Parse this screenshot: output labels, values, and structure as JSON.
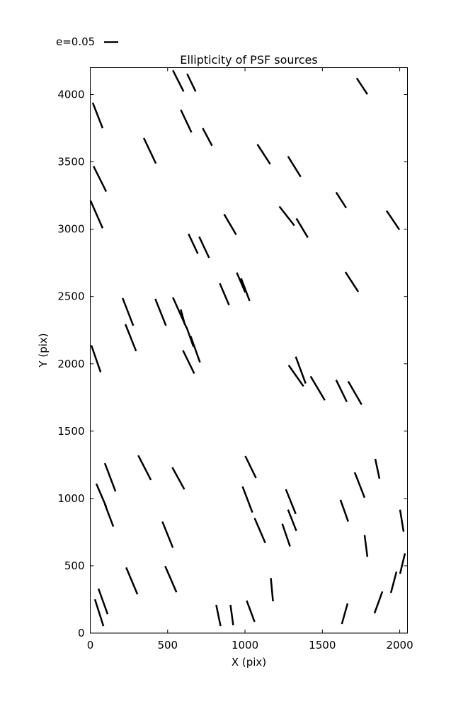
{
  "legend": {
    "label": "e=0.05",
    "ellipticity_value": 0.05
  },
  "chart_data": {
    "type": "quiver",
    "title": "Ellipticity of PSF sources",
    "xlabel": "X (pix)",
    "ylabel": "Y (pix)",
    "xlim": [
      0,
      2050
    ],
    "ylim": [
      0,
      4200
    ],
    "xticks": [
      0,
      500,
      1000,
      1500,
      2000
    ],
    "yticks": [
      0,
      500,
      1000,
      1500,
      2000,
      2500,
      3000,
      3500,
      4000
    ],
    "grid": false,
    "legend_position": "upper left outside",
    "stick_color": "#000000",
    "axis_color": "#000000",
    "segments": [
      [
        534,
        4180,
        603,
        4023
      ],
      [
        626,
        4154,
        681,
        4023
      ],
      [
        1722,
        4122,
        1791,
        4002
      ],
      [
        16,
        3939,
        80,
        3750
      ],
      [
        585,
        3887,
        654,
        3719
      ],
      [
        727,
        3750,
        787,
        3620
      ],
      [
        346,
        3677,
        424,
        3488
      ],
      [
        1080,
        3630,
        1163,
        3483
      ],
      [
        1278,
        3541,
        1360,
        3389
      ],
      [
        21,
        3468,
        103,
        3279
      ],
      [
        1589,
        3274,
        1654,
        3158
      ],
      [
        2,
        3211,
        80,
        3007
      ],
      [
        1222,
        3169,
        1319,
        3027
      ],
      [
        1915,
        3137,
        1998,
        2996
      ],
      [
        865,
        3111,
        943,
        2959
      ],
      [
        1332,
        3080,
        1406,
        2938
      ],
      [
        635,
        2965,
        695,
        2818
      ],
      [
        704,
        2944,
        768,
        2787
      ],
      [
        1649,
        2682,
        1732,
        2535
      ],
      [
        947,
        2677,
        1002,
        2530
      ],
      [
        975,
        2635,
        1030,
        2467
      ],
      [
        837,
        2598,
        897,
        2436
      ],
      [
        534,
        2493,
        622,
        2268
      ],
      [
        209,
        2488,
        278,
        2284
      ],
      [
        420,
        2483,
        489,
        2284
      ],
      [
        585,
        2404,
        612,
        2289
      ],
      [
        227,
        2294,
        296,
        2095
      ],
      [
        622,
        2273,
        667,
        2127
      ],
      [
        649,
        2205,
        709,
        2011
      ],
      [
        7,
        2137,
        67,
        1938
      ],
      [
        599,
        2100,
        672,
        1928
      ],
      [
        1328,
        2053,
        1392,
        1854
      ],
      [
        1282,
        1990,
        1378,
        1833
      ],
      [
        1424,
        1907,
        1516,
        1729
      ],
      [
        1589,
        1880,
        1658,
        1718
      ],
      [
        1667,
        1870,
        1754,
        1697
      ],
      [
        310,
        1320,
        392,
        1137
      ],
      [
        1002,
        1315,
        1071,
        1152
      ],
      [
        1842,
        1294,
        1869,
        1147
      ],
      [
        94,
        1262,
        163,
        1053
      ],
      [
        530,
        1231,
        608,
        1068
      ],
      [
        1709,
        1194,
        1773,
        1006
      ],
      [
        39,
        1110,
        103,
        938
      ],
      [
        984,
        1089,
        1048,
        896
      ],
      [
        1264,
        1068,
        1328,
        885
      ],
      [
        94,
        959,
        149,
        791
      ],
      [
        1617,
        990,
        1667,
        828
      ],
      [
        2002,
        917,
        2025,
        754
      ],
      [
        1278,
        917,
        1332,
        759
      ],
      [
        1062,
        854,
        1131,
        670
      ],
      [
        466,
        828,
        534,
        634
      ],
      [
        1241,
        812,
        1291,
        644
      ],
      [
        1773,
        728,
        1791,
        566
      ],
      [
        2034,
        592,
        2002,
        440
      ],
      [
        484,
        498,
        557,
        304
      ],
      [
        232,
        487,
        305,
        288
      ],
      [
        1979,
        456,
        1943,
        299
      ],
      [
        1167,
        409,
        1181,
        236
      ],
      [
        53,
        330,
        112,
        141
      ],
      [
        1888,
        309,
        1837,
        147
      ],
      [
        30,
        251,
        85,
        52
      ],
      [
        1011,
        241,
        1062,
        84
      ],
      [
        1663,
        220,
        1626,
        68
      ],
      [
        814,
        210,
        842,
        52
      ],
      [
        906,
        210,
        924,
        58
      ]
    ]
  }
}
